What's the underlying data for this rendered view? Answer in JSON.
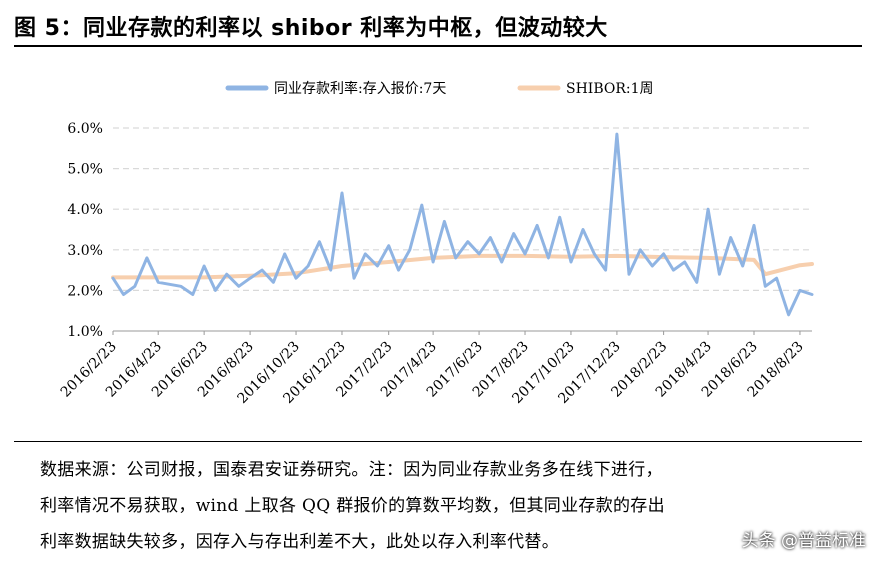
{
  "figure": {
    "title": "图 5：同业存款的利率以 shibor 利率为中枢，但波动较大"
  },
  "chart_data": {
    "type": "line",
    "ylim": [
      1.0,
      6.0
    ],
    "yticks": [
      "6.0%",
      "5.0%",
      "4.0%",
      "3.0%",
      "2.0%",
      "1.0%"
    ],
    "ytick_values": [
      6.0,
      5.0,
      4.0,
      3.0,
      2.0,
      1.0
    ],
    "xticks": [
      "2016/2/23",
      "2016/4/23",
      "2016/6/23",
      "2016/8/23",
      "2016/10/23",
      "2016/12/23",
      "2017/2/23",
      "2017/4/23",
      "2017/6/23",
      "2017/8/23",
      "2017/10/23",
      "2017/12/23",
      "2018/2/23",
      "2018/4/23",
      "2018/6/23",
      "2018/8/23"
    ],
    "grid": true,
    "legend_placement": "top",
    "series": [
      {
        "name": "同业存款利率:存入报价:7天",
        "color": "#8fb4e3",
        "x": [
          "2016/2/23",
          "2016/3/8",
          "2016/3/23",
          "2016/4/8",
          "2016/4/23",
          "2016/5/8",
          "2016/5/23",
          "2016/6/8",
          "2016/6/23",
          "2016/7/8",
          "2016/7/23",
          "2016/8/8",
          "2016/8/23",
          "2016/9/8",
          "2016/9/23",
          "2016/10/8",
          "2016/10/23",
          "2016/11/8",
          "2016/11/23",
          "2016/12/8",
          "2016/12/23",
          "2017/1/8",
          "2017/1/23",
          "2017/2/8",
          "2017/2/23",
          "2017/3/8",
          "2017/3/23",
          "2017/4/8",
          "2017/4/23",
          "2017/5/8",
          "2017/5/23",
          "2017/6/8",
          "2017/6/23",
          "2017/7/8",
          "2017/7/23",
          "2017/8/8",
          "2017/8/23",
          "2017/9/8",
          "2017/9/23",
          "2017/10/8",
          "2017/10/23",
          "2017/11/8",
          "2017/11/23",
          "2017/12/8",
          "2017/12/23",
          "2018/1/8",
          "2018/1/23",
          "2018/2/8",
          "2018/2/23",
          "2018/3/8",
          "2018/3/23",
          "2018/4/8",
          "2018/4/23",
          "2018/5/8",
          "2018/5/23",
          "2018/6/8",
          "2018/6/23",
          "2018/7/8",
          "2018/7/23",
          "2018/8/8",
          "2018/8/23",
          "2018/9/8"
        ],
        "values": [
          2.3,
          1.9,
          2.1,
          2.8,
          2.2,
          2.15,
          2.1,
          1.9,
          2.6,
          2.0,
          2.4,
          2.1,
          2.3,
          2.5,
          2.2,
          2.9,
          2.3,
          2.6,
          3.2,
          2.5,
          4.4,
          2.3,
          2.9,
          2.6,
          3.1,
          2.5,
          3.0,
          4.1,
          2.7,
          3.7,
          2.8,
          3.2,
          2.9,
          3.3,
          2.7,
          3.4,
          2.9,
          3.6,
          2.8,
          3.8,
          2.7,
          3.5,
          2.9,
          2.5,
          5.85,
          2.4,
          3.0,
          2.6,
          2.9,
          2.5,
          2.7,
          2.2,
          4.0,
          2.4,
          3.3,
          2.6,
          3.6,
          2.1,
          2.3,
          1.4,
          2.0,
          1.9
        ]
      },
      {
        "name": "SHIBOR:1周",
        "color": "#f7cfae",
        "x": [
          "2016/2/23",
          "2016/4/23",
          "2016/6/23",
          "2016/8/23",
          "2016/10/23",
          "2016/12/23",
          "2017/2/23",
          "2017/4/23",
          "2017/6/23",
          "2017/8/23",
          "2017/10/23",
          "2017/12/23",
          "2018/2/23",
          "2018/4/23",
          "2018/6/23",
          "2018/7/8",
          "2018/8/23",
          "2018/9/8"
        ],
        "values": [
          2.32,
          2.32,
          2.32,
          2.36,
          2.42,
          2.6,
          2.7,
          2.8,
          2.85,
          2.85,
          2.83,
          2.85,
          2.82,
          2.8,
          2.75,
          2.4,
          2.62,
          2.65
        ]
      }
    ]
  },
  "source_note": {
    "lines": [
      "数据来源：公司财报，国泰君安证券研究。注：因为同业存款业务多在线下进行，",
      "利率情况不易获取，wind 上取各 QQ 群报价的算数平均数，但其同业存款的存出",
      "利率数据缺失较多，因存入与存出利差不大，此处以存入利率代替。"
    ]
  },
  "watermark": "头条 @普益标准"
}
